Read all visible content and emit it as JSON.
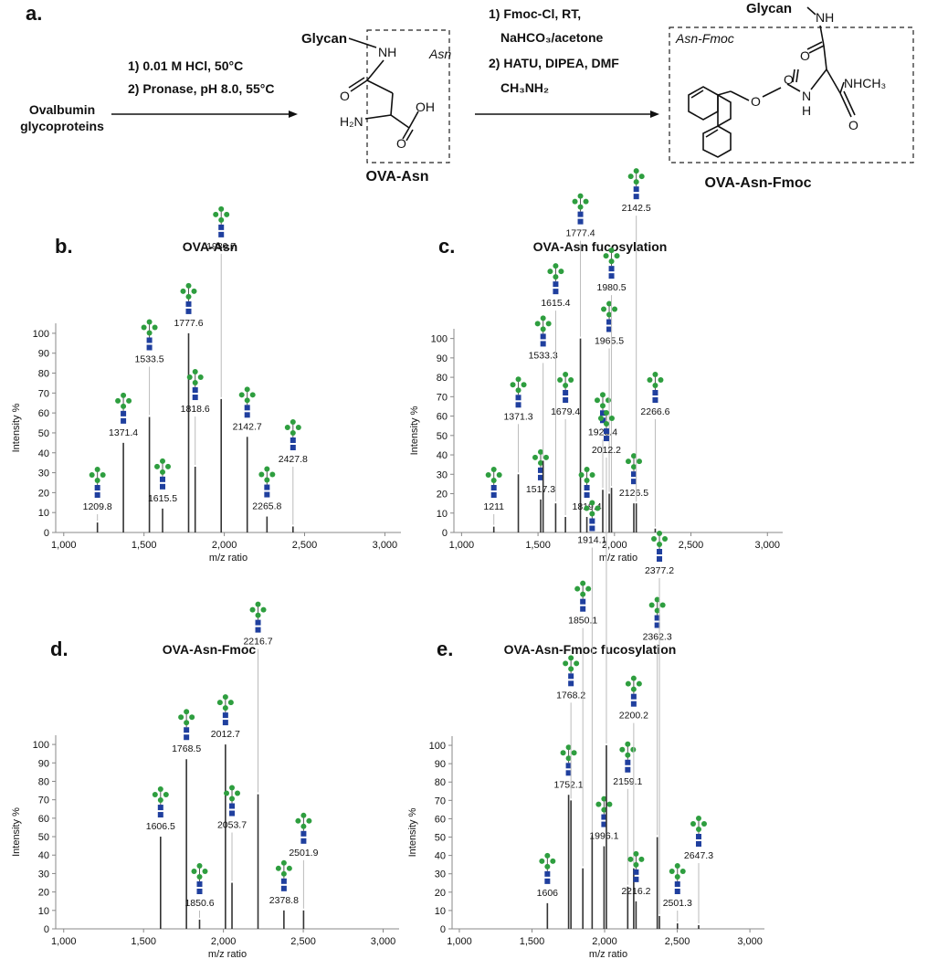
{
  "scheme": {
    "panel_label": "a.",
    "substrate": [
      "Ovalbumin",
      "glycoproteins"
    ],
    "step1": [
      "1) 0.01 M HCl, 50°C",
      "2) Pronase, pH 8.0, 55°C"
    ],
    "product1": {
      "name": "OVA-Asn",
      "box_label": "Asn",
      "atoms": [
        "Glycan",
        "NH",
        "O",
        "H₂N",
        "OH",
        "O"
      ]
    },
    "step2": [
      "1) Fmoc-Cl, RT,",
      "NaHCO₃/acetone",
      "2) HATU, DIPEA, DMF",
      "CH₃NH₂"
    ],
    "product2": {
      "name": "OVA-Asn-Fmoc",
      "box_label": "Asn-Fmoc",
      "atoms": [
        "Glycan",
        "NH",
        "O",
        "O",
        "O",
        "N",
        "H",
        "NHCH₃",
        "O"
      ]
    }
  },
  "chart_data": [
    {
      "type": "spectrum",
      "panel_label": "b.",
      "title": "OVA-Asn",
      "x_label": "m/z ratio",
      "y_label": "Intensity %",
      "x": [
        1209.8,
        1371.4,
        1533.5,
        1615.5,
        1777.6,
        1818.6,
        1980.7,
        2142.7,
        2265.8,
        2427.8
      ],
      "values": [
        5,
        45,
        58,
        12,
        100,
        33,
        67,
        48,
        8,
        3
      ],
      "color": "#333333",
      "xlim": [
        950,
        3100
      ],
      "ylim": [
        0,
        105
      ],
      "xticks": [
        {
          "value": 1000,
          "label": "1,000"
        },
        {
          "value": 1500,
          "label": "1,500"
        },
        {
          "value": 2000,
          "label": "2,000"
        },
        {
          "value": 2500,
          "label": "2,500"
        },
        {
          "value": 3000,
          "label": "3,000"
        }
      ],
      "yticks": [
        0,
        10,
        20,
        30,
        40,
        50,
        60,
        70,
        80,
        90,
        100
      ]
    },
    {
      "type": "spectrum",
      "panel_label": "c.",
      "title": "OVA-Asn fucosylation",
      "x_label": "m/z ratio",
      "y_label": "Intensity %",
      "x": [
        1211.0,
        1371.3,
        1517.3,
        1533.3,
        1615.4,
        1679.4,
        1777.4,
        1819.4,
        1923.4,
        1965.5,
        1980.5,
        2126.5,
        2142.5,
        2266.6
      ],
      "values": [
        3,
        30,
        17,
        37,
        15,
        8,
        100,
        8,
        22,
        20,
        23,
        15,
        15,
        2
      ],
      "color": "#333333",
      "xlim": [
        950,
        3100
      ],
      "ylim": [
        0,
        105
      ],
      "xticks": [
        {
          "value": 1000,
          "label": "1,000"
        },
        {
          "value": 1500,
          "label": "1,500"
        },
        {
          "value": 2000,
          "label": "2,000"
        },
        {
          "value": 2500,
          "label": "2,500"
        },
        {
          "value": 3000,
          "label": "3,000"
        }
      ],
      "yticks": [
        0,
        10,
        20,
        30,
        40,
        50,
        60,
        70,
        80,
        90,
        100
      ]
    },
    {
      "type": "spectrum",
      "panel_label": "d.",
      "title": "OVA-Asn-Fmoc",
      "x_label": "m/z ratio",
      "y_label": "Intensity %",
      "x": [
        1606.5,
        1768.5,
        1850.6,
        2012.7,
        2053.7,
        2216.7,
        2378.8,
        2501.9
      ],
      "values": [
        50,
        92,
        5,
        100,
        25,
        73,
        10,
        10
      ],
      "color": "#333333",
      "xlim": [
        950,
        3100
      ],
      "ylim": [
        0,
        105
      ],
      "xticks": [
        {
          "value": 1000,
          "label": "1,000"
        },
        {
          "value": 1500,
          "label": "1,500"
        },
        {
          "value": 2000,
          "label": "2,000"
        },
        {
          "value": 2500,
          "label": "2,500"
        },
        {
          "value": 3000,
          "label": "3,000"
        }
      ],
      "yticks": [
        0,
        10,
        20,
        30,
        40,
        50,
        60,
        70,
        80,
        90,
        100
      ]
    },
    {
      "type": "spectrum",
      "panel_label": "e.",
      "title": "OVA-Asn-Fmoc fucosylation",
      "x_label": "m/z ratio",
      "y_label": "Intensity %",
      "x": [
        1606.0,
        1752.1,
        1768.2,
        1850.1,
        1914.1,
        1996.1,
        2012.2,
        2159.1,
        2200.2,
        2216.2,
        2362.3,
        2377.2,
        2501.3,
        2647.3
      ],
      "values": [
        14,
        73,
        70,
        33,
        51,
        45,
        100,
        23,
        33,
        15,
        50,
        7,
        3,
        2
      ],
      "color": "#333333",
      "xlim": [
        950,
        3100
      ],
      "ylim": [
        0,
        105
      ],
      "xticks": [
        {
          "value": 1000,
          "label": "1,000"
        },
        {
          "value": 1500,
          "label": "1,500"
        },
        {
          "value": 2000,
          "label": "2,000"
        },
        {
          "value": 2500,
          "label": "2,500"
        },
        {
          "value": 3000,
          "label": "3,000"
        }
      ],
      "yticks": [
        0,
        10,
        20,
        30,
        40,
        50,
        60,
        70,
        80,
        90,
        100
      ]
    }
  ]
}
